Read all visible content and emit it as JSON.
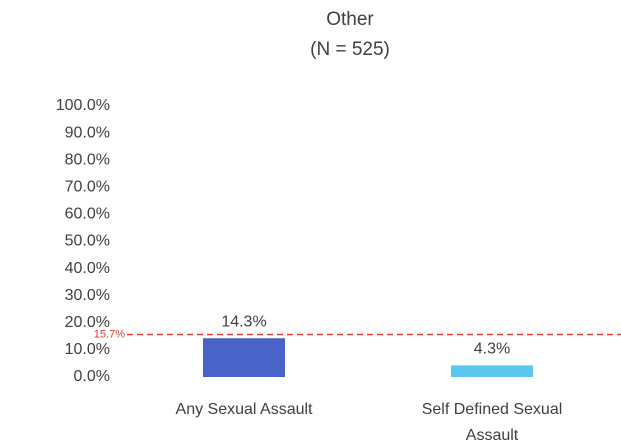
{
  "chart_data": {
    "type": "bar",
    "title": "Other",
    "subtitle": "(N = 525)",
    "categories": [
      "Any Sexual Assault",
      "Self Defined Sexual Assault"
    ],
    "values": [
      14.3,
      4.3
    ],
    "value_labels": [
      "14.3%",
      "4.3%"
    ],
    "colors": [
      "#4a63c8",
      "#5bc8f0"
    ],
    "ylim": [
      0,
      100
    ],
    "yticks": [
      {
        "value": 0,
        "label": "0.0%"
      },
      {
        "value": 10,
        "label": "10.0%"
      },
      {
        "value": 20,
        "label": "20.0%"
      },
      {
        "value": 30,
        "label": "30.0%"
      },
      {
        "value": 40,
        "label": "40.0%"
      },
      {
        "value": 50,
        "label": "50.0%"
      },
      {
        "value": 60,
        "label": "60.0%"
      },
      {
        "value": 70,
        "label": "70.0%"
      },
      {
        "value": 80,
        "label": "80.0%"
      },
      {
        "value": 90,
        "label": "90.0%"
      },
      {
        "value": 100,
        "label": "100.0%"
      }
    ],
    "grid": false,
    "reference_line": {
      "value": 15.7,
      "label": "15.7%",
      "color": "#e03c31"
    }
  }
}
